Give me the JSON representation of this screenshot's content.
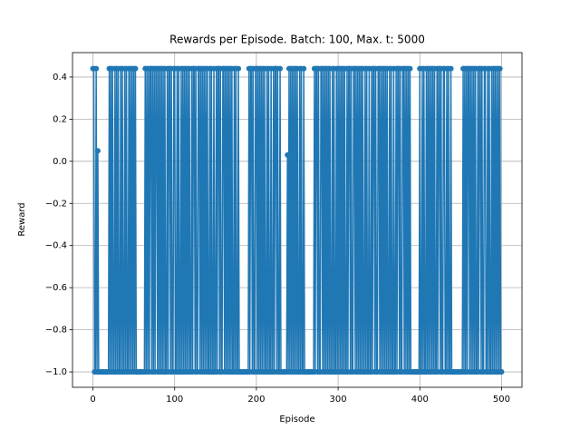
{
  "chart_data": {
    "type": "line",
    "title": "Rewards per Episode. Batch: 100, Max. t: 5000",
    "xlabel": "Episode",
    "ylabel": "Reward",
    "x": [
      0,
      1,
      2,
      3,
      4,
      5,
      6,
      7,
      8,
      9,
      10,
      11,
      12,
      13,
      14,
      15,
      16,
      17,
      18,
      19,
      20,
      21,
      22,
      23,
      24,
      25,
      26,
      27,
      28,
      29,
      30,
      31,
      32,
      33,
      34,
      35,
      36,
      37,
      38,
      39,
      40,
      41,
      42,
      43,
      44,
      45,
      46,
      47,
      48,
      49,
      50,
      51,
      52,
      53,
      54,
      55,
      56,
      57,
      58,
      59,
      60,
      61,
      62,
      63,
      64,
      65,
      66,
      67,
      68,
      69,
      70,
      71,
      72,
      73,
      74,
      75,
      76,
      77,
      78,
      79,
      80,
      81,
      82,
      83,
      84,
      85,
      86,
      87,
      88,
      89,
      90,
      91,
      92,
      93,
      94,
      95,
      96,
      97,
      98,
      99,
      100,
      101,
      102,
      103,
      104,
      105,
      106,
      107,
      108,
      109,
      110,
      111,
      112,
      113,
      114,
      115,
      116,
      117,
      118,
      119,
      120,
      121,
      122,
      123,
      124,
      125,
      126,
      127,
      128,
      129,
      130,
      131,
      132,
      133,
      134,
      135,
      136,
      137,
      138,
      139,
      140,
      141,
      142,
      143,
      144,
      145,
      146,
      147,
      148,
      149,
      150,
      151,
      152,
      153,
      154,
      155,
      156,
      157,
      158,
      159,
      160,
      161,
      162,
      163,
      164,
      165,
      166,
      167,
      168,
      169,
      170,
      171,
      172,
      173,
      174,
      175,
      176,
      177,
      178,
      179,
      180,
      181,
      182,
      183,
      184,
      185,
      186,
      187,
      188,
      189,
      190,
      191,
      192,
      193,
      194,
      195,
      196,
      197,
      198,
      199,
      200,
      201,
      202,
      203,
      204,
      205,
      206,
      207,
      208,
      209,
      210,
      211,
      212,
      213,
      214,
      215,
      216,
      217,
      218,
      219,
      220,
      221,
      222,
      223,
      224,
      225,
      226,
      227,
      228,
      229,
      230,
      231,
      232,
      233,
      234,
      235,
      236,
      237,
      238,
      239,
      240,
      241,
      242,
      243,
      244,
      245,
      246,
      247,
      248,
      249,
      250,
      251,
      252,
      253,
      254,
      255,
      256,
      257,
      258,
      259,
      260,
      261,
      262,
      263,
      264,
      265,
      266,
      267,
      268,
      269,
      270,
      271,
      272,
      273,
      274,
      275,
      276,
      277,
      278,
      279,
      280,
      281,
      282,
      283,
      284,
      285,
      286,
      287,
      288,
      289,
      290,
      291,
      292,
      293,
      294,
      295,
      296,
      297,
      298,
      299,
      300,
      301,
      302,
      303,
      304,
      305,
      306,
      307,
      308,
      309,
      310,
      311,
      312,
      313,
      314,
      315,
      316,
      317,
      318,
      319,
      320,
      321,
      322,
      323,
      324,
      325,
      326,
      327,
      328,
      329,
      330,
      331,
      332,
      333,
      334,
      335,
      336,
      337,
      338,
      339,
      340,
      341,
      342,
      343,
      344,
      345,
      346,
      347,
      348,
      349,
      350,
      351,
      352,
      353,
      354,
      355,
      356,
      357,
      358,
      359,
      360,
      361,
      362,
      363,
      364,
      365,
      366,
      367,
      368,
      369,
      370,
      371,
      372,
      373,
      374,
      375,
      376,
      377,
      378,
      379,
      380,
      381,
      382,
      383,
      384,
      385,
      386,
      387,
      388,
      389,
      390,
      391,
      392,
      393,
      394,
      395,
      396,
      397,
      398,
      399,
      400,
      401,
      402,
      403,
      404,
      405,
      406,
      407,
      408,
      409,
      410,
      411,
      412,
      413,
      414,
      415,
      416,
      417,
      418,
      419,
      420,
      421,
      422,
      423,
      424,
      425,
      426,
      427,
      428,
      429,
      430,
      431,
      432,
      433,
      434,
      435,
      436,
      437,
      438,
      439,
      440,
      441,
      442,
      443,
      444,
      445,
      446,
      447,
      448,
      449,
      450,
      451,
      452,
      453,
      454,
      455,
      456,
      457,
      458,
      459,
      460,
      461,
      462,
      463,
      464,
      465,
      466,
      467,
      468,
      469,
      470,
      471,
      472,
      473,
      474,
      475,
      476,
      477,
      478,
      479,
      480,
      481,
      482,
      483,
      484,
      485,
      486,
      487,
      488,
      489,
      490,
      491,
      492,
      493,
      494,
      495,
      496,
      497,
      498,
      499,
      500
    ],
    "series": [
      {
        "name": "Reward",
        "color": "#1f77b4",
        "values": [
          0.44,
          0.44,
          -1,
          -1,
          0.44,
          -1,
          0.05,
          -1,
          -1,
          -1,
          -1,
          -1,
          -1,
          -1,
          -1,
          -1,
          -1,
          -1,
          -1,
          -1,
          0.44,
          -1,
          0.44,
          -1,
          0.44,
          -1,
          -1,
          0.44,
          -1,
          0.44,
          -1,
          0.44,
          -1,
          -1,
          0.44,
          -1,
          0.44,
          -1,
          -1,
          0.44,
          -1,
          0.44,
          -1,
          -1,
          0.44,
          -1,
          0.44,
          -1,
          0.44,
          -1,
          0.44,
          -1,
          0.44,
          -1,
          -1,
          -1,
          -1,
          -1,
          -1,
          -1,
          -1,
          -1,
          -1,
          -1,
          0.44,
          -1,
          0.44,
          -1,
          0.44,
          -1,
          0.44,
          0.44,
          -1,
          0.44,
          -1,
          0.44,
          -1,
          0.44,
          0.44,
          -1,
          0.44,
          -1,
          0.44,
          -1,
          0.44,
          -1,
          0.44,
          -1,
          0.44,
          -1,
          -1,
          0.44,
          -1,
          0.44,
          0.44,
          -1,
          0.44,
          -1,
          -1,
          0.44,
          0.44,
          -1,
          -1,
          0.44,
          -1,
          0.44,
          -1,
          -1,
          0.44,
          -1,
          0.44,
          -1,
          0.44,
          -1,
          0.44,
          -1,
          0.44,
          -1,
          0.44,
          -1,
          -1,
          0.44,
          -1,
          0.44,
          0.44,
          -1,
          0.44,
          -1,
          -1,
          0.44,
          0.44,
          -1,
          0.44,
          -1,
          0.44,
          -1,
          0.44,
          -1,
          0.44,
          -1,
          0.44,
          -1,
          -1,
          0.44,
          -1,
          0.44,
          -1,
          -1,
          0.44,
          -1,
          -1,
          0.44,
          -1,
          0.44,
          0.44,
          -1,
          0.44,
          -1,
          -1,
          0.44,
          0.44,
          -1,
          0.44,
          -1,
          0.44,
          -1,
          0.44,
          -1,
          0.44,
          -1,
          0.44,
          -1,
          -1,
          0.44,
          -1,
          0.44,
          -1,
          -1,
          0.44,
          -1,
          -1,
          -1,
          -1,
          -1,
          -1,
          -1,
          -1,
          -1,
          -1,
          -1,
          -1,
          0.44,
          -1,
          0.44,
          0.44,
          -1,
          0.44,
          -1,
          -1,
          0.44,
          0.44,
          -1,
          0.44,
          -1,
          0.44,
          -1,
          0.44,
          -1,
          0.44,
          -1,
          0.44,
          -1,
          -1,
          0.44,
          -1,
          0.44,
          -1,
          -1,
          0.44,
          -1,
          -1,
          0.44,
          -1,
          0.44,
          0.44,
          -1,
          0.44,
          -1,
          -1,
          0.44,
          -1,
          -1,
          -1,
          -1,
          -1,
          -1,
          -1,
          -1,
          0.03,
          -1,
          0.44,
          -1,
          0.44,
          -1,
          0.44,
          -1,
          0.44,
          -1,
          0.44,
          -1,
          0.44,
          -1,
          -1,
          0.44,
          -1,
          0.44,
          -1,
          -1,
          0.44,
          -1,
          -1,
          -1,
          -1,
          -1,
          -1,
          -1,
          -1,
          -1,
          -1,
          -1,
          -1,
          0.44,
          -1,
          0.44,
          0.44,
          -1,
          0.44,
          -1,
          -1,
          0.44,
          0.44,
          -1,
          0.44,
          -1,
          0.44,
          -1,
          0.44,
          -1,
          0.44,
          -1,
          0.44,
          -1,
          -1,
          0.44,
          -1,
          0.44,
          -1,
          -1,
          0.44,
          -1,
          0.44,
          -1,
          0.44,
          -1,
          0.44,
          -1,
          0.44,
          -1,
          0.44,
          -1,
          -1,
          0.44,
          -1,
          0.44,
          0.44,
          -1,
          0.44,
          -1,
          -1,
          0.44,
          0.44,
          -1,
          0.44,
          -1,
          0.44,
          -1,
          0.44,
          -1,
          0.44,
          -1,
          0.44,
          -1,
          -1,
          0.44,
          -1,
          0.44,
          -1,
          -1,
          0.44,
          -1,
          -1,
          0.44,
          -1,
          0.44,
          0.44,
          -1,
          0.44,
          -1,
          -1,
          0.44,
          0.44,
          -1,
          0.44,
          -1,
          0.44,
          -1,
          0.44,
          -1,
          0.44,
          -1,
          0.44,
          -1,
          -1,
          0.44,
          -1,
          0.44,
          -1,
          -1,
          0.44,
          -1,
          -1,
          0.44,
          -1,
          0.44,
          0.44,
          -1,
          0.44,
          -1,
          -1,
          0.44,
          0.44,
          -1,
          0.44,
          -1,
          0.44,
          -1,
          0.44,
          -1,
          0.44,
          -1,
          -1,
          -1,
          -1,
          -1,
          -1,
          -1,
          -1,
          -1,
          -1,
          -1,
          0.44,
          -1,
          -1,
          0.44,
          -1,
          0.44,
          -1,
          -1,
          0.44,
          -1,
          0.44,
          -1,
          0.44,
          -1,
          0.44,
          -1,
          0.44,
          -1,
          0.44,
          -1,
          -1,
          0.44,
          -1,
          0.44,
          0.44,
          -1,
          0.44,
          -1,
          -1,
          0.44,
          0.44,
          -1,
          -1,
          0.44,
          -1,
          0.44,
          -1,
          -1,
          0.44,
          -1,
          -1,
          -1,
          -1,
          -1,
          -1,
          -1,
          -1,
          -1,
          -1,
          -1,
          -1,
          -1,
          -1,
          0.44,
          -1,
          0.44,
          -1,
          0.44,
          -1,
          0.44,
          0.44,
          -1,
          0.44,
          -1,
          0.44,
          -1,
          0.44,
          -1,
          0.44,
          -1,
          -1,
          0.44,
          -1,
          0.44,
          0.44,
          -1,
          0.44,
          -1,
          -1,
          0.44,
          0.44,
          -1,
          -1,
          0.44,
          -1,
          0.44,
          -1,
          -1,
          0.44,
          -1,
          0.44,
          -1,
          0.44,
          -1,
          0.44,
          -1,
          0.44,
          -1,
          0.44,
          -1,
          -1
        ]
      }
    ],
    "xlim": [
      -25,
      525
    ],
    "ylim": [
      -1.073,
      0.516
    ],
    "xticks": [
      0,
      100,
      200,
      300,
      400,
      500
    ],
    "yticks": [
      {
        "value": -1.0,
        "label": "−1.0"
      },
      {
        "value": -0.8,
        "label": "−0.8"
      },
      {
        "value": -0.6,
        "label": "−0.6"
      },
      {
        "value": -0.4,
        "label": "−0.4"
      },
      {
        "value": -0.2,
        "label": "−0.2"
      },
      {
        "value": 0.0,
        "label": "0.0"
      },
      0.2,
      0.4
    ],
    "grid": true
  }
}
